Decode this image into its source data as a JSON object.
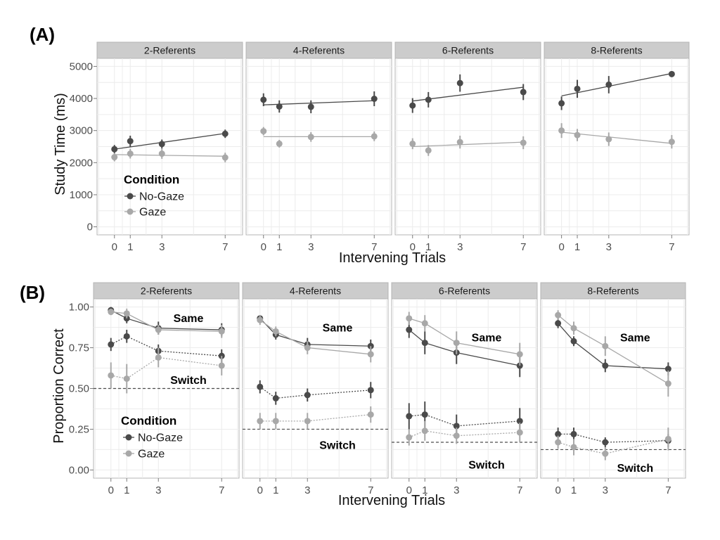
{
  "colors": {
    "no_gaze": "#4a4a4a",
    "gaze": "#a8a8a8"
  },
  "panel_labels": [
    "(A)",
    "(B)"
  ],
  "chart_data": [
    {
      "type": "line",
      "panel_label": "(A)",
      "xlabel": "Intervening Trials",
      "ylabel": "Study Time (ms)",
      "x_ticks": [
        0,
        1,
        3,
        7
      ],
      "y_ticks": [
        0,
        1000,
        2000,
        3000,
        4000,
        5000
      ],
      "xlim": [
        -1.1,
        8.1
      ],
      "ylim": [
        -250,
        5250
      ],
      "grid": true,
      "legend": {
        "title": "Condition",
        "entries": [
          "No-Gaze",
          "Gaze"
        ],
        "placement": "bottom-left"
      },
      "facets": [
        {
          "label": "2-Referents",
          "x": [
            0,
            1,
            3,
            7
          ],
          "series": [
            {
              "name": "No-Gaze",
              "values": [
                2420,
                2670,
                2580,
                2900
              ],
              "error": [
                130,
                170,
                140,
                130
              ],
              "fit": [
                2420,
                2490,
                2630,
                2910
              ]
            },
            {
              "name": "Gaze",
              "values": [
                2170,
                2280,
                2280,
                2160
              ],
              "error": [
                130,
                150,
                160,
                150
              ],
              "fit": [
                2250,
                2245,
                2230,
                2200
              ]
            }
          ]
        },
        {
          "label": "4-Referents",
          "x": [
            0,
            1,
            3,
            7
          ],
          "series": [
            {
              "name": "No-Gaze",
              "values": [
                3960,
                3750,
                3740,
                3990
              ],
              "error": [
                200,
                190,
                200,
                230
              ],
              "fit": [
                3800,
                3820,
                3850,
                3930
              ]
            },
            {
              "name": "Gaze",
              "values": [
                2980,
                2590,
                2800,
                2820
              ],
              "error": [
                130,
                120,
                150,
                150
              ],
              "fit": [
                2810,
                2810,
                2810,
                2810
              ]
            }
          ]
        },
        {
          "label": "6-Referents",
          "x": [
            0,
            1,
            3,
            7
          ],
          "series": [
            {
              "name": "No-Gaze",
              "values": [
                3780,
                3960,
                4480,
                4200
              ],
              "error": [
                230,
                240,
                270,
                250
              ],
              "fit": [
                3920,
                3980,
                4100,
                4350
              ]
            },
            {
              "name": "Gaze",
              "values": [
                2590,
                2380,
                2640,
                2620
              ],
              "error": [
                170,
                170,
                200,
                200
              ],
              "fit": [
                2500,
                2520,
                2560,
                2640
              ]
            }
          ]
        },
        {
          "label": "8-Referents",
          "x": [
            0,
            1,
            3,
            7
          ],
          "series": [
            {
              "name": "No-Gaze",
              "values": [
                3850,
                4300,
                4430,
                4760
              ],
              "error": [
                210,
                280,
                270,
                60
              ],
              "fit": [
                4080,
                4180,
                4380,
                4780
              ]
            },
            {
              "name": "Gaze",
              "values": [
                3000,
                2860,
                2730,
                2650
              ],
              "error": [
                230,
                190,
                210,
                210
              ],
              "fit": [
                2950,
                2900,
                2800,
                2600
              ]
            }
          ]
        }
      ]
    },
    {
      "type": "line",
      "panel_label": "(B)",
      "xlabel": "Intervening Trials",
      "ylabel": "Proportion Correct",
      "x_ticks": [
        0,
        1,
        3,
        7
      ],
      "y_ticks": [
        0.0,
        0.25,
        0.5,
        0.75,
        1.0
      ],
      "y_tick_labels": [
        "0.00",
        "0.25",
        "0.50",
        "0.75",
        "1.00"
      ],
      "xlim": [
        -1.1,
        8.1
      ],
      "ylim": [
        -0.05,
        1.05
      ],
      "grid": true,
      "legend": {
        "title": "Condition",
        "entries": [
          "No-Gaze",
          "Gaze"
        ],
        "placement": "bottom-left"
      },
      "facets": [
        {
          "label": "2-Referents",
          "chance": 0.5,
          "annotations": [
            {
              "text": "Same",
              "x": 4.9,
              "y": 0.93
            },
            {
              "text": "Switch",
              "x": 4.9,
              "y": 0.55
            }
          ],
          "x": [
            0,
            1,
            3,
            7
          ],
          "series": [
            {
              "name": "No-Gaze",
              "condition": "Same",
              "values": [
                0.98,
                0.93,
                0.87,
                0.86
              ],
              "error": [
                0.02,
                0.03,
                0.04,
                0.04
              ]
            },
            {
              "name": "Gaze",
              "condition": "Same",
              "values": [
                0.97,
                0.96,
                0.86,
                0.85
              ],
              "error": [
                0.02,
                0.03,
                0.03,
                0.04
              ]
            },
            {
              "name": "No-Gaze",
              "condition": "Switch",
              "values": [
                0.77,
                0.82,
                0.73,
                0.7
              ],
              "error": [
                0.04,
                0.04,
                0.04,
                0.04
              ]
            },
            {
              "name": "Gaze",
              "condition": "Switch",
              "values": [
                0.58,
                0.56,
                0.69,
                0.64
              ],
              "error": [
                0.08,
                0.09,
                0.06,
                0.06
              ]
            }
          ]
        },
        {
          "label": "4-Referents",
          "chance": 0.25,
          "annotations": [
            {
              "text": "Same",
              "x": 4.9,
              "y": 0.87
            },
            {
              "text": "Switch",
              "x": 4.9,
              "y": 0.15
            }
          ],
          "x": [
            0,
            1,
            3,
            7
          ],
          "series": [
            {
              "name": "No-Gaze",
              "condition": "Same",
              "values": [
                0.93,
                0.83,
                0.77,
                0.76
              ],
              "error": [
                0.02,
                0.03,
                0.04,
                0.04
              ]
            },
            {
              "name": "Gaze",
              "condition": "Same",
              "values": [
                0.92,
                0.85,
                0.75,
                0.71
              ],
              "error": [
                0.03,
                0.03,
                0.04,
                0.05
              ]
            },
            {
              "name": "No-Gaze",
              "condition": "Switch",
              "values": [
                0.51,
                0.44,
                0.46,
                0.49
              ],
              "error": [
                0.04,
                0.04,
                0.04,
                0.05
              ]
            },
            {
              "name": "Gaze",
              "condition": "Switch",
              "values": [
                0.3,
                0.3,
                0.3,
                0.34
              ],
              "error": [
                0.05,
                0.05,
                0.05,
                0.05
              ]
            }
          ]
        },
        {
          "label": "6-Referents",
          "chance": 0.17,
          "annotations": [
            {
              "text": "Same",
              "x": 4.9,
              "y": 0.81
            },
            {
              "text": "Switch",
              "x": 4.9,
              "y": 0.03
            }
          ],
          "x": [
            0,
            1,
            3,
            7
          ],
          "series": [
            {
              "name": "No-Gaze",
              "condition": "Same",
              "values": [
                0.86,
                0.78,
                0.72,
                0.64
              ],
              "error": [
                0.05,
                0.07,
                0.07,
                0.07
              ]
            },
            {
              "name": "Gaze",
              "condition": "Same",
              "values": [
                0.93,
                0.9,
                0.78,
                0.71
              ],
              "error": [
                0.04,
                0.05,
                0.07,
                0.07
              ]
            },
            {
              "name": "No-Gaze",
              "condition": "Switch",
              "values": [
                0.33,
                0.34,
                0.27,
                0.3
              ],
              "error": [
                0.08,
                0.08,
                0.07,
                0.08
              ]
            },
            {
              "name": "Gaze",
              "condition": "Switch",
              "values": [
                0.2,
                0.24,
                0.21,
                0.23
              ],
              "error": [
                0.05,
                0.06,
                0.05,
                0.06
              ]
            }
          ]
        },
        {
          "label": "8-Referents",
          "chance": 0.125,
          "annotations": [
            {
              "text": "Same",
              "x": 4.9,
              "y": 0.81
            },
            {
              "text": "Switch",
              "x": 4.9,
              "y": 0.01
            }
          ],
          "x": [
            0,
            1,
            3,
            7
          ],
          "series": [
            {
              "name": "No-Gaze",
              "condition": "Same",
              "values": [
                0.9,
                0.79,
                0.64,
                0.62
              ],
              "error": [
                0.03,
                0.03,
                0.04,
                0.04
              ]
            },
            {
              "name": "Gaze",
              "condition": "Same",
              "values": [
                0.95,
                0.87,
                0.76,
                0.53
              ],
              "error": [
                0.03,
                0.04,
                0.06,
                0.08
              ]
            },
            {
              "name": "No-Gaze",
              "condition": "Switch",
              "values": [
                0.22,
                0.22,
                0.17,
                0.18
              ],
              "error": [
                0.04,
                0.04,
                0.03,
                0.04
              ]
            },
            {
              "name": "Gaze",
              "condition": "Switch",
              "values": [
                0.17,
                0.14,
                0.1,
                0.19
              ],
              "error": [
                0.04,
                0.05,
                0.04,
                0.07
              ]
            }
          ]
        }
      ]
    }
  ]
}
